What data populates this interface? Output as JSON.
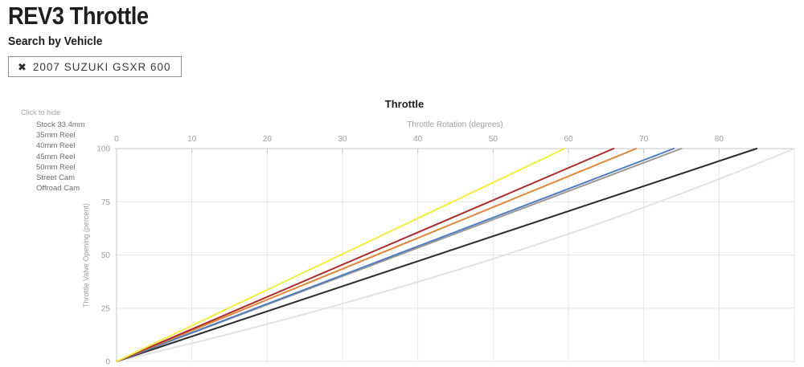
{
  "page": {
    "title": "REV3 Throttle",
    "subtitle": "Search by Vehicle",
    "vehicle_chip": {
      "remove_icon": "✖",
      "label": "2007 SUZUKI GSXR 600"
    }
  },
  "legend": {
    "hint": "Click to hide",
    "items": [
      "Stock 33.4mm",
      "35mm Reel",
      "40mm Reel",
      "45mm Reel",
      "50mm Reel",
      "Street Cam",
      "Offroad Cam"
    ]
  },
  "chart_data": {
    "type": "line",
    "title": "Throttle",
    "xlabel": "Throttle Rotation (degrees)",
    "ylabel": "Throttle Valve Opening (percent)",
    "xlim": [
      0,
      90
    ],
    "ylim": [
      0,
      100
    ],
    "x_ticks": [
      0,
      10,
      20,
      30,
      40,
      50,
      60,
      70,
      80
    ],
    "y_ticks": [
      0,
      25,
      50,
      75,
      100
    ],
    "grid": true,
    "axis_color": "#c4c4c4",
    "grid_color": "#e6e6e6",
    "tick_label_color": "#9e9e9e",
    "series": [
      {
        "name": "Stock 33.4mm",
        "color": "#e2e2e2",
        "points": [
          [
            0,
            0
          ],
          [
            90,
            100
          ]
        ],
        "curve": true,
        "curve_control": [
          51,
          42
        ]
      },
      {
        "name": "35mm Reel",
        "color": "#2b2b2b",
        "points": [
          [
            0,
            0
          ],
          [
            85,
            100
          ]
        ]
      },
      {
        "name": "40mm Reel",
        "color": "#a19a93",
        "points": [
          [
            0,
            0
          ],
          [
            75,
            100
          ]
        ]
      },
      {
        "name": "Offroad Cam",
        "color": "#4d7ec2",
        "points": [
          [
            0,
            0
          ],
          [
            74,
            100
          ]
        ]
      },
      {
        "name": "Street Cam",
        "color": "#df8637",
        "points": [
          [
            0,
            0
          ],
          [
            69,
            100
          ]
        ]
      },
      {
        "name": "45mm Reel",
        "color": "#ad2a2a",
        "points": [
          [
            0,
            0
          ],
          [
            66,
            100
          ]
        ]
      },
      {
        "name": "50mm Reel",
        "color": "#f2ee3e",
        "points": [
          [
            0,
            0
          ],
          [
            59.5,
            100
          ]
        ]
      }
    ]
  }
}
